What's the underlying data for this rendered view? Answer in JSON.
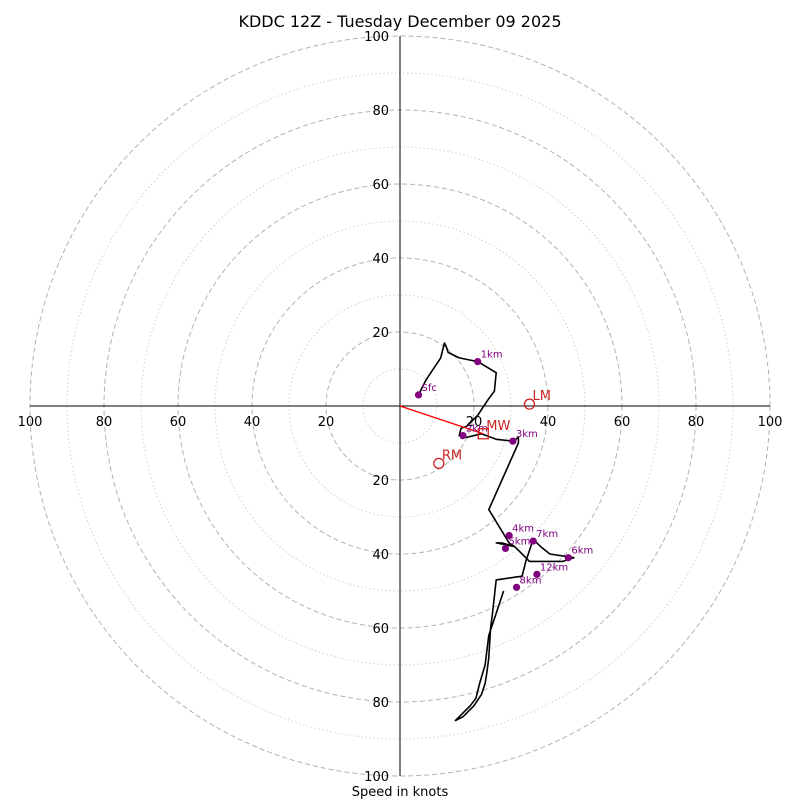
{
  "chart_data": {
    "type": "hodograph",
    "title": "KDDC 12Z - Tuesday December 09 2025",
    "xlabel": "Speed in knots",
    "rings": {
      "major": [
        20,
        40,
        60,
        80,
        100
      ],
      "minor": [
        10,
        30,
        50,
        70,
        90
      ]
    },
    "axis_range": [
      -100,
      100
    ],
    "tick_labels": {
      "left": [
        "100",
        "80",
        "60",
        "40",
        "20"
      ],
      "right": [
        "20",
        "40",
        "60",
        "80",
        "100"
      ],
      "top": [
        "20",
        "40",
        "60",
        "80",
        "100"
      ],
      "bottom": [
        "20",
        "40",
        "60",
        "80",
        "100"
      ]
    },
    "trace": [
      [
        5,
        3
      ],
      [
        7,
        7
      ],
      [
        11,
        13
      ],
      [
        12,
        17
      ],
      [
        12.5,
        16
      ],
      [
        13,
        14.5
      ],
      [
        16,
        13
      ],
      [
        21,
        12
      ],
      [
        26,
        9
      ],
      [
        25.5,
        4
      ],
      [
        24,
        2
      ],
      [
        21,
        -2.5
      ],
      [
        18,
        -5.5
      ],
      [
        16.5,
        -6
      ],
      [
        16,
        -8
      ],
      [
        18,
        -8.5
      ],
      [
        22,
        -7.5
      ],
      [
        26,
        -9
      ],
      [
        30.5,
        -9.5
      ],
      [
        32,
        -8.5
      ],
      [
        32,
        -10
      ],
      [
        24,
        -28
      ],
      [
        29.5,
        -37
      ],
      [
        31,
        -38
      ],
      [
        27.5,
        -37
      ],
      [
        26,
        -37
      ],
      [
        31,
        -38
      ],
      [
        35,
        -42
      ],
      [
        44,
        -42
      ],
      [
        47,
        -41
      ],
      [
        40.5,
        -40
      ],
      [
        38,
        -38
      ],
      [
        36,
        -36
      ],
      [
        34,
        -42
      ],
      [
        33,
        -46
      ],
      [
        26,
        -47
      ],
      [
        25,
        -56
      ],
      [
        24.5,
        -60
      ],
      [
        24,
        -68
      ],
      [
        23.5,
        -72
      ],
      [
        23,
        -75
      ],
      [
        22,
        -78
      ],
      [
        20,
        -81
      ],
      [
        17,
        -84
      ],
      [
        15,
        -85
      ],
      [
        17,
        -83
      ],
      [
        19,
        -81
      ],
      [
        20.5,
        -79
      ],
      [
        21.5,
        -75
      ],
      [
        23,
        -70
      ],
      [
        24,
        -62
      ],
      [
        26,
        -56
      ],
      [
        28,
        -50
      ]
    ],
    "height_points": [
      {
        "label": "Sfc",
        "u": 5,
        "v": 3
      },
      {
        "label": "1km",
        "u": 21,
        "v": 12
      },
      {
        "label": "2km",
        "u": 17,
        "v": -8
      },
      {
        "label": "3km",
        "u": 30.5,
        "v": -9.5
      },
      {
        "label": "4km",
        "u": 29.5,
        "v": -35
      },
      {
        "label": "5km",
        "u": 28.5,
        "v": -38.5
      },
      {
        "label": "6km",
        "u": 45.5,
        "v": -41
      },
      {
        "label": "7km",
        "u": 36,
        "v": -36.5
      },
      {
        "label": "8km",
        "u": 31.5,
        "v": -49
      },
      {
        "label": "12km",
        "u": 37,
        "v": -45.5
      }
    ],
    "storm_motions": [
      {
        "label": "LM",
        "u": 35,
        "v": 0.5,
        "marker": "circle"
      },
      {
        "label": "MW",
        "u": 22.5,
        "v": -7.5,
        "marker": "square"
      },
      {
        "label": "RM",
        "u": 10.5,
        "v": -15.5,
        "marker": "circle"
      }
    ],
    "shear_vector": {
      "from": [
        0,
        0
      ],
      "to": [
        22.5,
        -7.5
      ]
    }
  },
  "colors": {
    "trace": "#000000",
    "height_points": "#800080",
    "storm_motion": "#cc2222",
    "shear_vector": "#ff0000"
  }
}
